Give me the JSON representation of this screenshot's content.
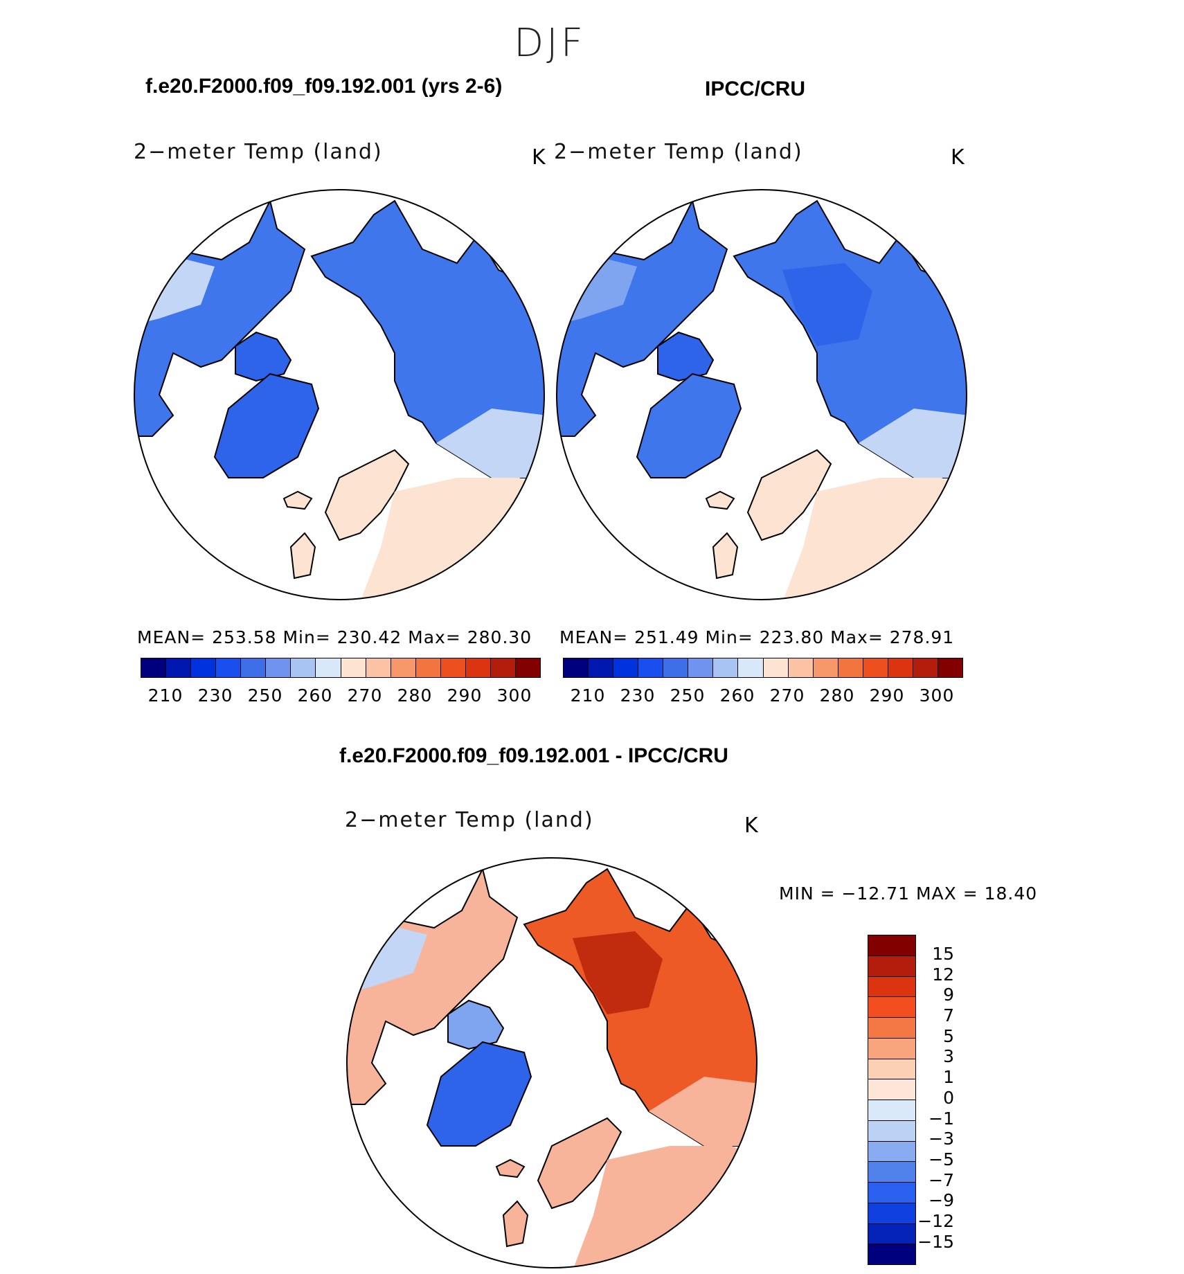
{
  "season": "DJF",
  "panels": [
    {
      "case_title": "f.e20.F2000.f09_f09.192.001 (yrs 2-6)",
      "variable": "2−meter Temp (land)",
      "units": "K",
      "stats": "MEAN=  253.58   Min=  230.42   Max=  280.30"
    },
    {
      "case_title": "IPCC/CRU",
      "variable": "2−meter Temp (land)",
      "units": "K",
      "stats": "MEAN=  251.49   Min=  223.80   Max=  278.91"
    }
  ],
  "abs_colorbar": {
    "colors": [
      "#00007f",
      "#0017b0",
      "#0033dd",
      "#1a4fef",
      "#3f6fe8",
      "#6f94ef",
      "#a8c4f2",
      "#d8e8f8",
      "#fde3d2",
      "#fbc2a4",
      "#f7986b",
      "#f2743f",
      "#ee4f1f",
      "#dc3410",
      "#b21e0b",
      "#830000"
    ],
    "ticks": [
      "210",
      "230",
      "250",
      "260",
      "270",
      "280",
      "290",
      "300"
    ]
  },
  "diff": {
    "title": "f.e20.F2000.f09_f09.192.001 - IPCC/CRU",
    "variable": "2−meter Temp (land)",
    "units": "K",
    "minmax": "MIN  =  −12.71  MAX  =    18.40"
  },
  "diff_colorbar": {
    "colors": [
      "#830000",
      "#b21e0b",
      "#dc3410",
      "#f24e1f",
      "#f47844",
      "#f8a57e",
      "#fbd0b5",
      "#fde6d8",
      "#d9e9fa",
      "#bcd2f5",
      "#88abf2",
      "#5181ea",
      "#2a5ff0",
      "#1040e0",
      "#0523b9",
      "#00007f"
    ],
    "labels": [
      "15",
      "12",
      "9",
      "7",
      "5",
      "3",
      "1",
      "0",
      "−1",
      "−3",
      "−5",
      "−7",
      "−9",
      "−12",
      "−15"
    ]
  },
  "map_colors": {
    "ocean": "#ffffff",
    "coast": "#000000",
    "cold1": "#2e64ea",
    "cold2": "#3f76ec",
    "cool": "#7fa4f0",
    "mild": "#c3d6f5",
    "warm1": "#fde3d2",
    "warm2": "#f8b49a",
    "warm3": "#f39168",
    "hot1": "#ee5a26",
    "hot2": "#c12b0e",
    "hot3": "#6a1208"
  }
}
